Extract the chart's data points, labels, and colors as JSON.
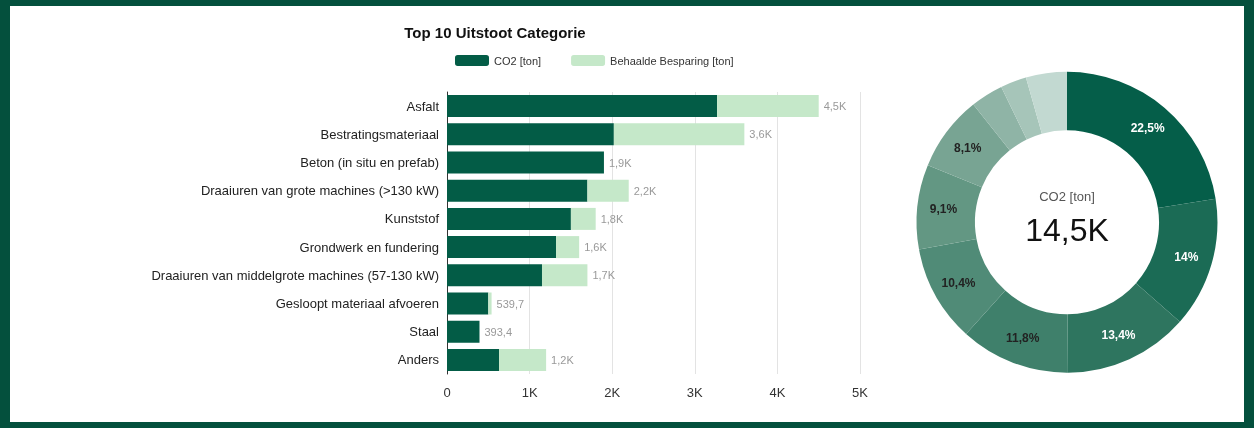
{
  "chart_data": [
    {
      "type": "bar",
      "orientation": "horizontal",
      "stacked": true,
      "title": "Top 10 Uitstoot Categorie",
      "categories": [
        "Asfalt",
        "Bestratingsmateriaal",
        "Beton (in situ en prefab)",
        "Draaiuren van grote machines (>130 kW)",
        "Kunststof",
        "Grondwerk en fundering",
        "Draaiuren van middelgrote machines (57-130 kW)",
        "Gesloopt materiaal afvoeren",
        "Staal",
        "Anders"
      ],
      "series": [
        {
          "name": "CO2 [ton]",
          "color": "#035c46",
          "values": [
            3270,
            2020,
            1900,
            1700,
            1500,
            1320,
            1150,
            500,
            393.4,
            630
          ]
        },
        {
          "name": "Behaalde Besparing [ton]",
          "color": "#c5e8c9",
          "values": [
            1230,
            1580,
            null,
            500,
            300,
            280,
            550,
            39.7,
            null,
            570
          ]
        }
      ],
      "totals": [
        "4,5K",
        "3,6K",
        "1,9K",
        "2,2K",
        "1,8K",
        "1,6K",
        "1,7K",
        "539,7",
        "393,4",
        "1,2K"
      ],
      "xlim": [
        0,
        5000
      ],
      "xticks": [
        0,
        {
          "value": 1000,
          "label": "1K"
        },
        {
          "value": 2000,
          "label": "2K"
        },
        {
          "value": 3000,
          "label": "3K"
        },
        {
          "value": 4000,
          "label": "4K"
        },
        {
          "value": 5000,
          "label": "5K"
        }
      ],
      "grid": "x",
      "legend": "top"
    },
    {
      "type": "donut",
      "categories": [
        null,
        null,
        null,
        null,
        null,
        null,
        null,
        null,
        null,
        null
      ],
      "values": [
        22.5,
        14,
        13.4,
        11.8,
        10.4,
        9.1,
        8.1,
        3.5,
        2.8,
        4.4
      ],
      "colors": [
        "#055e49",
        "#1b6b55",
        "#2e755f",
        "#3f806b",
        "#508b77",
        "#639783",
        "#78a493",
        "#8fb4a6",
        "#a6c5b9",
        "#c2d9d1"
      ],
      "value_labels": [
        "22,5%",
        "14%",
        "13,4%",
        "11,8%",
        "10,4%",
        "9,1%",
        "8,1%",
        null,
        null,
        null
      ],
      "annotations": [
        "CO2 [ton]",
        "14,5K"
      ]
    }
  ]
}
